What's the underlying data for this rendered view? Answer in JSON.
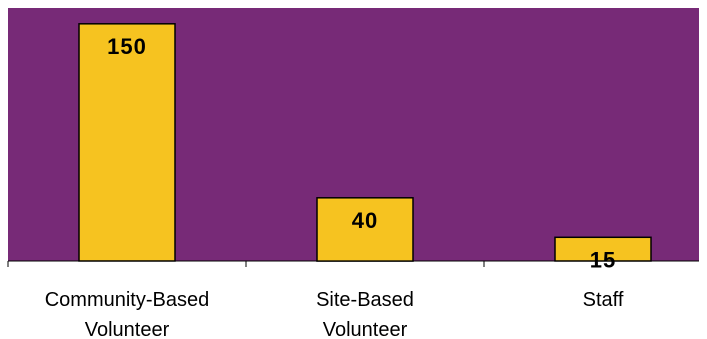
{
  "colors": {
    "plot_background": "#772a77",
    "bar_fill": "#f6c320",
    "bar_stroke": "#000000",
    "axis": "#000000"
  },
  "chart_data": {
    "type": "bar",
    "title": "",
    "xlabel": "",
    "ylabel": "",
    "categories": [
      "Community-Based Volunteer",
      "Site-Based Volunteer",
      "Staff"
    ],
    "category_label_lines": [
      [
        "Community-Based",
        "Volunteer"
      ],
      [
        "Site-Based",
        "Volunteer"
      ],
      [
        "Staff"
      ]
    ],
    "values": [
      150,
      40,
      15
    ],
    "value_labels": [
      "150",
      "40",
      "15"
    ],
    "ylim": [
      0,
      160
    ],
    "grid": false,
    "legend": "none"
  }
}
